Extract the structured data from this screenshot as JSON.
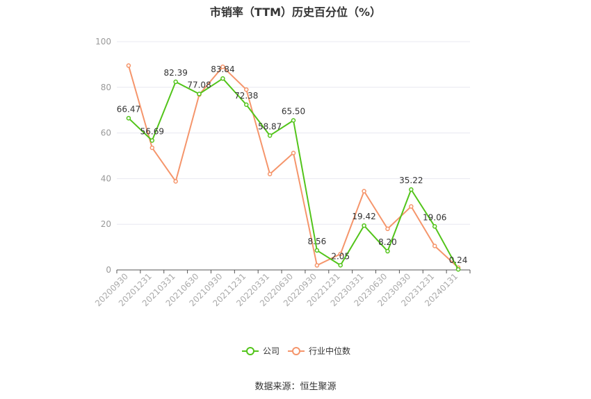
{
  "title": "市销率（TTM）历史百分位（%）",
  "source": "数据来源：恒生聚源",
  "colors": {
    "company": "#52c41a",
    "industry": "#f5956b",
    "grid": "#e8e8f0",
    "axis": "#555555"
  },
  "chart_data": {
    "type": "line",
    "categories": [
      "20200930",
      "20201231",
      "20210331",
      "20210630",
      "20210930",
      "20211231",
      "20220331",
      "20220630",
      "20220930",
      "20221231",
      "20230331",
      "20230630",
      "20230930",
      "20231231",
      "20240131"
    ],
    "ylim": [
      0,
      100
    ],
    "yticks": [
      0,
      20,
      40,
      60,
      80,
      100
    ],
    "legend_position": "bottom",
    "grid": true,
    "series": [
      {
        "name": "公司",
        "values": [
          66.47,
          56.69,
          82.39,
          77.08,
          83.84,
          72.38,
          58.87,
          65.5,
          8.56,
          2.05,
          19.42,
          8.2,
          35.22,
          19.06,
          0.24
        ],
        "labels": [
          "66.47",
          "56.69",
          "82.39",
          "77.08",
          "83.84",
          "72.38",
          "58.87",
          "65.50",
          "8.56",
          "2.05",
          "19.42",
          "8.20",
          "35.22",
          "19.06",
          "0.24"
        ]
      },
      {
        "name": "行业中位数",
        "values": [
          89.5,
          53.5,
          38.8,
          76.8,
          89.0,
          79.0,
          42.0,
          51.2,
          2.0,
          7.0,
          34.5,
          18.0,
          27.8,
          10.5,
          1.0
        ]
      }
    ]
  }
}
